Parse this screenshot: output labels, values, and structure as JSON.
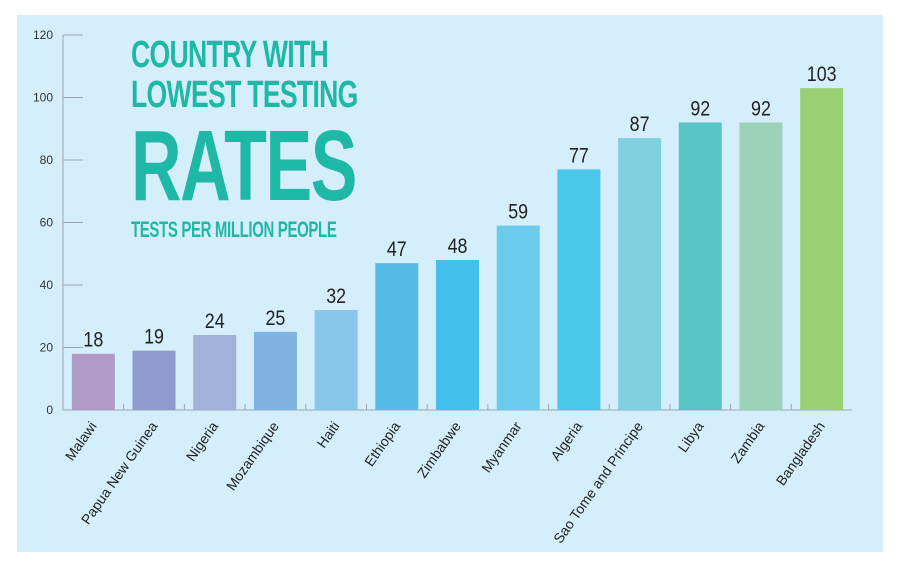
{
  "chart_data": {
    "type": "bar",
    "title_lines": [
      "COUNTRY WITH",
      "LOWEST TESTING",
      "RATES"
    ],
    "subtitle": "TESTS PER MILLION PEOPLE",
    "categories": [
      "Malawi",
      "Papua New Guinea",
      "Nigeria",
      "Mozambique",
      "Haiti",
      "Ethiopia",
      "Zimbabwe",
      "Myanmar",
      "Algeria",
      "Sao Tome and Principe",
      "Libya",
      "Zambia",
      "Bangladesh"
    ],
    "values": [
      18,
      19,
      24,
      25,
      32,
      47,
      48,
      59,
      77,
      87,
      92,
      92,
      103
    ],
    "data_labels": [
      "18",
      "19",
      "24",
      "25",
      "32",
      "47",
      "48",
      "59",
      "77",
      "87",
      "92",
      "92",
      "103"
    ],
    "colors": [
      "#b09ac6",
      "#8f9bcc",
      "#a0b2dc",
      "#80b3e2",
      "#8ac6ea",
      "#58bce9",
      "#44c0ea",
      "#6acbec",
      "#4bc8e8",
      "#80d0df",
      "#58c4c6",
      "#9cd3b8",
      "#9bcf74"
    ],
    "yticks": [
      "0",
      "20",
      "40",
      "60",
      "80",
      "100",
      "120"
    ],
    "ylim": [
      0,
      120
    ],
    "xlabel": "",
    "ylabel": "",
    "grid": false,
    "background": "#d5eefb",
    "title_color": "#1fb8a6"
  }
}
